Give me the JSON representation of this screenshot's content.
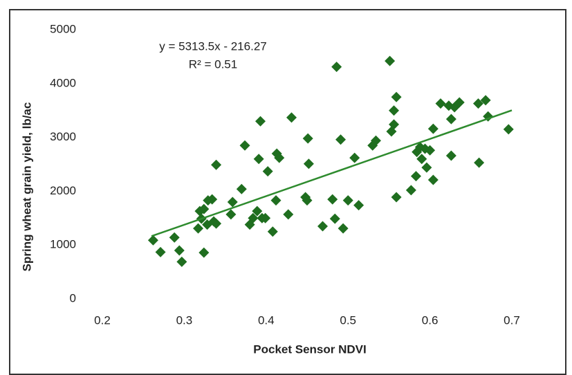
{
  "chart_data": {
    "type": "scatter",
    "xlabel": "Pocket Sensor NDVI",
    "ylabel": "Spring wheat grain yield, lb/ac",
    "annotations": [
      "y = 5313.5x - 216.27",
      "R² = 0.51"
    ],
    "xlim": [
      0.2,
      0.7
    ],
    "ylim": [
      0,
      5000
    ],
    "xticks": [
      0.2,
      0.3,
      0.4,
      0.5,
      0.6,
      0.7
    ],
    "yticks": [
      0,
      1000,
      2000,
      3000,
      4000,
      5000
    ],
    "grid": false,
    "color": "#1f6e1f",
    "x": [
      0.262,
      0.271,
      0.288,
      0.294,
      0.297,
      0.324,
      0.317,
      0.321,
      0.324,
      0.329,
      0.334,
      0.328,
      0.336,
      0.339,
      0.319,
      0.339,
      0.357,
      0.359,
      0.37,
      0.374,
      0.38,
      0.384,
      0.389,
      0.391,
      0.393,
      0.395,
      0.399,
      0.402,
      0.408,
      0.412,
      0.413,
      0.416,
      0.427,
      0.431,
      0.448,
      0.45,
      0.451,
      0.452,
      0.469,
      0.481,
      0.484,
      0.486,
      0.491,
      0.494,
      0.5,
      0.508,
      0.513,
      0.53,
      0.534,
      0.551,
      0.553,
      0.556,
      0.559,
      0.556,
      0.559,
      0.577,
      0.583,
      0.584,
      0.588,
      0.59,
      0.594,
      0.596,
      0.6,
      0.604,
      0.604,
      0.613,
      0.623,
      0.626,
      0.626,
      0.63,
      0.636,
      0.66,
      0.659,
      0.668,
      0.671,
      0.696
    ],
    "values": [
      1090,
      870,
      1140,
      900,
      690,
      860,
      1310,
      1490,
      1670,
      1830,
      1850,
      1380,
      1440,
      1400,
      1630,
      2490,
      1570,
      1800,
      2040,
      2850,
      1380,
      1500,
      1630,
      2600,
      3300,
      1500,
      1500,
      2370,
      1250,
      1830,
      2700,
      2620,
      1570,
      3370,
      1890,
      1830,
      2980,
      2510,
      1350,
      1850,
      1490,
      4310,
      2960,
      1310,
      1830,
      2620,
      1740,
      2850,
      2940,
      4420,
      3110,
      3500,
      3750,
      3240,
      1890,
      2020,
      2280,
      2730,
      2820,
      2600,
      2790,
      2440,
      2760,
      3160,
      2210,
      3630,
      3590,
      3340,
      2660,
      3560,
      3650,
      2530,
      3630,
      3690,
      3390,
      3150
    ],
    "trendline": {
      "color": "#2e8b2e",
      "x": [
        0.26,
        0.7
      ],
      "values": [
        1165,
        3503
      ]
    }
  }
}
